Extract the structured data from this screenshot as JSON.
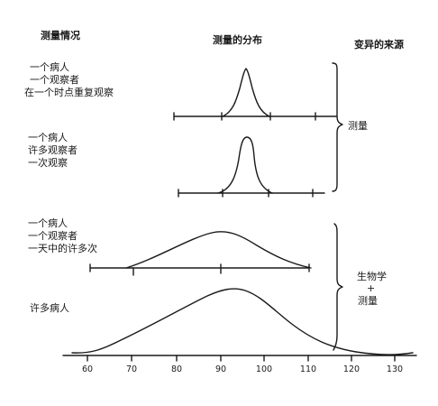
{
  "headers": {
    "situation": "测量情况",
    "distribution": "测量的分布",
    "source": "变异的来源"
  },
  "rows": [
    {
      "lines": [
        "一个病人",
        "一个观察者",
        "在一个时点重复观察"
      ]
    },
    {
      "lines": [
        "一个病人",
        "许多观察者",
        "一次观察"
      ]
    },
    {
      "lines": [
        "一个病人",
        "一个观察者",
        "一天中的许多次"
      ]
    },
    {
      "lines": [
        "许多病人"
      ]
    }
  ],
  "sources": {
    "measurement": "测量",
    "biology": "生物学",
    "plus": "+",
    "measurement2": "测量"
  },
  "axis": {
    "ticks": [
      "60",
      "70",
      "80",
      "90",
      "100",
      "110",
      "120",
      "130"
    ]
  },
  "colors": {
    "ink": "#1a1a1a"
  }
}
